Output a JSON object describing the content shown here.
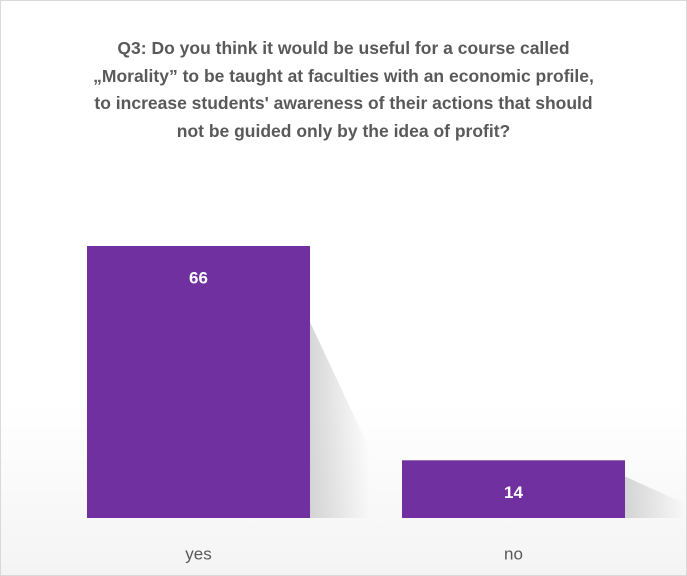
{
  "chart_data": {
    "type": "bar",
    "title": "Q3: Do you think it would be useful for a course called „Morality” to be taught at faculties with an economic profile, to increase students' awareness of their actions that should not be guided only by the idea of profit?",
    "categories": [
      "yes",
      "no"
    ],
    "values": [
      66,
      14
    ],
    "color": "#7030a0"
  }
}
